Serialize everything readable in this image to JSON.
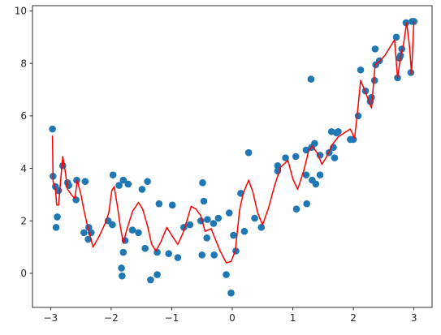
{
  "chart_data": {
    "type": "scatter",
    "title": "",
    "xlabel": "",
    "ylabel": "",
    "xlim": [
      -3.3,
      3.3
    ],
    "ylim": [
      -1.3,
      10.2
    ],
    "xticks": [
      -3,
      -2,
      -1,
      0,
      1,
      2,
      3
    ],
    "yticks": [
      0,
      2,
      4,
      6,
      8,
      10
    ],
    "xtick_labels": [
      "−3",
      "−2",
      "−1",
      "0",
      "1",
      "2",
      "3"
    ],
    "ytick_labels": [
      "0",
      "2",
      "4",
      "6",
      "8",
      "10"
    ],
    "grid": false,
    "legend": "none",
    "series": [
      {
        "kind": "scatter",
        "color": "#1f77b4",
        "points": [
          [
            -2.97,
            5.5
          ],
          [
            -2.96,
            3.7
          ],
          [
            -2.92,
            3.3
          ],
          [
            -2.91,
            1.75
          ],
          [
            -2.89,
            2.15
          ],
          [
            -2.87,
            3.15
          ],
          [
            -2.8,
            4.1
          ],
          [
            -2.72,
            3.45
          ],
          [
            -2.7,
            3.35
          ],
          [
            -2.58,
            2.8
          ],
          [
            -2.57,
            3.55
          ],
          [
            -2.43,
            3.5
          ],
          [
            -2.45,
            1.55
          ],
          [
            -2.38,
            1.3
          ],
          [
            -2.37,
            1.75
          ],
          [
            -2.33,
            1.55
          ],
          [
            -2.05,
            2.0
          ],
          [
            -1.98,
            1.85
          ],
          [
            -1.97,
            3.75
          ],
          [
            -1.87,
            3.35
          ],
          [
            -1.83,
            0.2
          ],
          [
            -1.82,
            -0.1
          ],
          [
            -1.8,
            0.8
          ],
          [
            -1.8,
            3.55
          ],
          [
            -1.77,
            1.25
          ],
          [
            -1.72,
            3.4
          ],
          [
            -1.65,
            1.65
          ],
          [
            -1.55,
            1.55
          ],
          [
            -1.49,
            3.2
          ],
          [
            -1.44,
            0.95
          ],
          [
            -1.4,
            3.5
          ],
          [
            -1.35,
            -0.25
          ],
          [
            -1.24,
            0.8
          ],
          [
            -1.24,
            -0.05
          ],
          [
            -1.21,
            2.65
          ],
          [
            -1.05,
            0.75
          ],
          [
            -0.99,
            2.6
          ],
          [
            -0.9,
            0.6
          ],
          [
            -0.8,
            1.75
          ],
          [
            -0.7,
            1.85
          ],
          [
            -0.52,
            2.0
          ],
          [
            -0.5,
            0.7
          ],
          [
            -0.49,
            3.45
          ],
          [
            -0.47,
            2.75
          ],
          [
            -0.42,
            1.35
          ],
          [
            -0.41,
            2.05
          ],
          [
            -0.31,
            1.9
          ],
          [
            -0.3,
            0.7
          ],
          [
            -0.23,
            2.1
          ],
          [
            -0.1,
            -0.05
          ],
          [
            -0.05,
            2.3
          ],
          [
            -0.02,
            -0.75
          ],
          [
            0.02,
            1.45
          ],
          [
            0.06,
            0.85
          ],
          [
            0.14,
            3.05
          ],
          [
            0.2,
            1.6
          ],
          [
            0.27,
            4.6
          ],
          [
            0.37,
            2.1
          ],
          [
            0.48,
            1.75
          ],
          [
            0.75,
            4.1
          ],
          [
            0.75,
            3.9
          ],
          [
            0.88,
            4.4
          ],
          [
            1.05,
            4.45
          ],
          [
            1.06,
            2.45
          ],
          [
            1.22,
            4.7
          ],
          [
            1.22,
            3.75
          ],
          [
            1.23,
            2.65
          ],
          [
            1.3,
            7.4
          ],
          [
            1.31,
            4.8
          ],
          [
            1.32,
            3.55
          ],
          [
            1.36,
            4.95
          ],
          [
            1.38,
            3.4
          ],
          [
            1.45,
            3.75
          ],
          [
            1.45,
            4.5
          ],
          [
            1.6,
            4.6
          ],
          [
            1.64,
            5.4
          ],
          [
            1.67,
            4.8
          ],
          [
            1.69,
            4.4
          ],
          [
            1.72,
            5.35
          ],
          [
            1.75,
            5.4
          ],
          [
            1.95,
            5.1
          ],
          [
            2.0,
            5.1
          ],
          [
            2.08,
            6.0
          ],
          [
            2.12,
            7.75
          ],
          [
            2.2,
            6.95
          ],
          [
            2.28,
            6.55
          ],
          [
            2.3,
            6.7
          ],
          [
            2.35,
            7.35
          ],
          [
            2.36,
            8.55
          ],
          [
            2.37,
            7.95
          ],
          [
            2.43,
            8.1
          ],
          [
            2.71,
            9.0
          ],
          [
            2.73,
            7.45
          ],
          [
            2.76,
            8.2
          ],
          [
            2.78,
            8.3
          ],
          [
            2.8,
            8.55
          ],
          [
            2.87,
            9.55
          ],
          [
            2.95,
            7.65
          ],
          [
            2.97,
            9.6
          ],
          [
            3.0,
            9.6
          ]
        ]
      },
      {
        "kind": "line",
        "color": "#ff0000",
        "points": [
          [
            -2.97,
            5.25
          ],
          [
            -2.96,
            3.5
          ],
          [
            -2.92,
            3.2
          ],
          [
            -2.9,
            2.6
          ],
          [
            -2.87,
            2.6
          ],
          [
            -2.84,
            3.4
          ],
          [
            -2.8,
            4.45
          ],
          [
            -2.76,
            3.9
          ],
          [
            -2.72,
            3.2
          ],
          [
            -2.66,
            3.0
          ],
          [
            -2.6,
            2.85
          ],
          [
            -2.56,
            3.55
          ],
          [
            -2.5,
            3.0
          ],
          [
            -2.44,
            2.3
          ],
          [
            -2.38,
            1.7
          ],
          [
            -2.3,
            1.0
          ],
          [
            -2.2,
            1.4
          ],
          [
            -2.1,
            1.9
          ],
          [
            -2.04,
            2.3
          ],
          [
            -1.99,
            3.15
          ],
          [
            -1.95,
            3.3
          ],
          [
            -1.9,
            2.6
          ],
          [
            -1.85,
            1.8
          ],
          [
            -1.8,
            1.15
          ],
          [
            -1.75,
            1.6
          ],
          [
            -1.65,
            2.35
          ],
          [
            -1.55,
            2.7
          ],
          [
            -1.48,
            2.45
          ],
          [
            -1.4,
            1.8
          ],
          [
            -1.33,
            1.1
          ],
          [
            -1.26,
            0.85
          ],
          [
            -1.18,
            1.2
          ],
          [
            -1.08,
            1.75
          ],
          [
            -1.0,
            1.45
          ],
          [
            -0.9,
            1.1
          ],
          [
            -0.82,
            1.5
          ],
          [
            -0.75,
            2.0
          ],
          [
            -0.68,
            2.55
          ],
          [
            -0.6,
            2.45
          ],
          [
            -0.52,
            2.2
          ],
          [
            -0.45,
            1.6
          ],
          [
            -0.35,
            1.7
          ],
          [
            -0.28,
            1.3
          ],
          [
            -0.2,
            0.85
          ],
          [
            -0.1,
            0.4
          ],
          [
            -0.02,
            0.45
          ],
          [
            0.05,
            0.85
          ],
          [
            0.12,
            2.4
          ],
          [
            0.18,
            3.05
          ],
          [
            0.27,
            3.55
          ],
          [
            0.34,
            3.1
          ],
          [
            0.42,
            2.3
          ],
          [
            0.5,
            1.85
          ],
          [
            0.6,
            2.5
          ],
          [
            0.7,
            3.35
          ],
          [
            0.8,
            4.05
          ],
          [
            0.92,
            4.3
          ],
          [
            1.0,
            3.6
          ],
          [
            1.08,
            3.2
          ],
          [
            1.18,
            3.9
          ],
          [
            1.26,
            4.65
          ],
          [
            1.32,
            4.85
          ],
          [
            1.4,
            4.6
          ],
          [
            1.48,
            4.15
          ],
          [
            1.56,
            4.45
          ],
          [
            1.65,
            4.9
          ],
          [
            1.75,
            5.2
          ],
          [
            1.85,
            5.35
          ],
          [
            1.95,
            5.5
          ],
          [
            2.02,
            5.15
          ],
          [
            2.08,
            6.4
          ],
          [
            2.12,
            7.35
          ],
          [
            2.2,
            6.9
          ],
          [
            2.3,
            6.3
          ],
          [
            2.36,
            7.95
          ],
          [
            2.44,
            8.1
          ],
          [
            2.52,
            8.3
          ],
          [
            2.6,
            8.6
          ],
          [
            2.68,
            8.9
          ],
          [
            2.73,
            7.45
          ],
          [
            2.78,
            8.25
          ],
          [
            2.83,
            8.75
          ],
          [
            2.88,
            9.55
          ],
          [
            2.93,
            8.6
          ],
          [
            2.96,
            7.6
          ],
          [
            3.0,
            9.6
          ]
        ]
      }
    ]
  }
}
